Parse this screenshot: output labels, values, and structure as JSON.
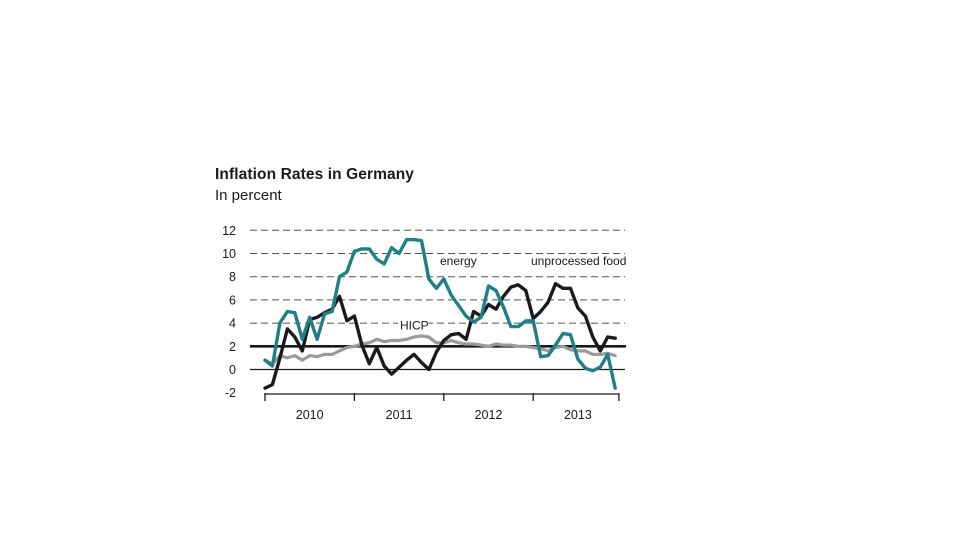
{
  "chart_data": {
    "type": "line",
    "title": "Inflation Rates in Germany",
    "subtitle": "In percent",
    "xlabel": "",
    "ylabel": "",
    "ylim": [
      -2,
      12
    ],
    "yticks": [
      12,
      10,
      8,
      6,
      4,
      2,
      0,
      -2
    ],
    "year_labels": [
      "2010",
      "2011",
      "2012",
      "2013"
    ],
    "reference_line": 2,
    "x_unit": "months since Jan 2010",
    "series": [
      {
        "name": "energy",
        "label": "energy",
        "color": "#1f7f86",
        "x": [
          0,
          1,
          2,
          3,
          4,
          5,
          6,
          7,
          8,
          9,
          10,
          11,
          12,
          13,
          14,
          15,
          16,
          17,
          18,
          19,
          20,
          21,
          22,
          23,
          24,
          25,
          26,
          27,
          28,
          29,
          30,
          31,
          32,
          33,
          34,
          35,
          36,
          37,
          38,
          39,
          40,
          41,
          42,
          43,
          44,
          45,
          46,
          47
        ],
        "values": [
          0.8,
          0.3,
          4.0,
          5.0,
          4.9,
          2.6,
          4.5,
          2.6,
          4.8,
          5.0,
          8.0,
          8.4,
          10.2,
          10.4,
          10.4,
          9.5,
          9.1,
          10.5,
          10.0,
          11.2,
          11.2,
          11.1,
          7.8,
          7.0,
          7.8,
          6.4,
          5.5,
          4.6,
          4.1,
          4.5,
          7.2,
          6.8,
          5.4,
          3.7,
          3.7,
          4.2,
          4.2,
          1.1,
          1.2,
          2.1,
          3.1,
          3.0,
          0.9,
          0.1,
          -0.1,
          0.2,
          1.3,
          -1.6
        ]
      },
      {
        "name": "unprocessed food",
        "label": "unprocessed food",
        "color": "#1a1a1a",
        "x": [
          0,
          1,
          2,
          3,
          4,
          5,
          6,
          7,
          8,
          9,
          10,
          11,
          12,
          13,
          14,
          15,
          16,
          17,
          18,
          19,
          20,
          21,
          22,
          23,
          24,
          25,
          26,
          27,
          28,
          29,
          30,
          31,
          32,
          33,
          34,
          35,
          36,
          37,
          38,
          39,
          40,
          41,
          42,
          43,
          44,
          45,
          46,
          47
        ],
        "values": [
          -1.6,
          -1.3,
          1.0,
          3.5,
          2.8,
          1.6,
          4.3,
          4.5,
          4.9,
          5.2,
          6.3,
          4.2,
          4.6,
          2.1,
          0.5,
          1.9,
          0.3,
          -0.4,
          0.2,
          0.8,
          1.3,
          0.6,
          0.0,
          1.5,
          2.5,
          3.0,
          3.1,
          2.6,
          5.0,
          4.6,
          5.6,
          5.2,
          6.3,
          7.1,
          7.3,
          6.8,
          4.4,
          5.0,
          5.8,
          7.4,
          7.0,
          7.0,
          5.3,
          4.6,
          2.8,
          1.6,
          2.8,
          2.7
        ]
      },
      {
        "name": "HICP",
        "label": "HICP",
        "color": "#9a9a9a",
        "x": [
          0,
          1,
          2,
          3,
          4,
          5,
          6,
          7,
          8,
          9,
          10,
          11,
          12,
          13,
          14,
          15,
          16,
          17,
          18,
          19,
          20,
          21,
          22,
          23,
          24,
          25,
          26,
          27,
          28,
          29,
          30,
          31,
          32,
          33,
          34,
          35,
          36,
          37,
          38,
          39,
          40,
          41,
          42,
          43,
          44,
          45,
          46,
          47
        ],
        "values": [
          0.8,
          0.5,
          1.2,
          1.0,
          1.2,
          0.8,
          1.2,
          1.1,
          1.3,
          1.3,
          1.6,
          1.9,
          2.0,
          2.2,
          2.3,
          2.6,
          2.4,
          2.5,
          2.5,
          2.6,
          2.8,
          2.9,
          2.8,
          2.3,
          2.3,
          2.5,
          2.3,
          2.2,
          2.2,
          2.1,
          2.0,
          2.2,
          2.1,
          2.1,
          2.0,
          2.0,
          1.9,
          1.8,
          1.6,
          1.9,
          2.0,
          1.7,
          1.6,
          1.6,
          1.3,
          1.3,
          1.4,
          1.2
        ]
      }
    ]
  }
}
